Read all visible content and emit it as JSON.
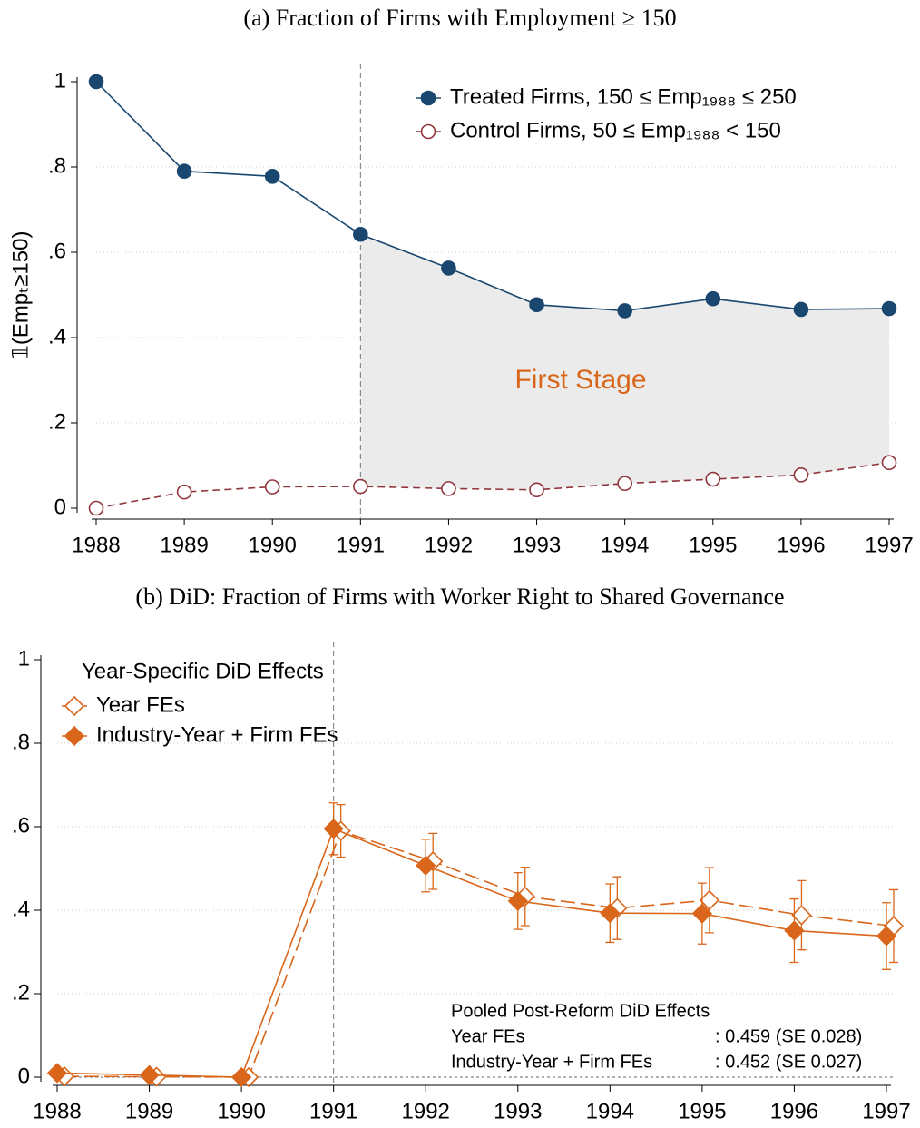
{
  "chart_data": [
    {
      "type": "line",
      "title": "(a) Fraction of Firms with Employment ≥ 150",
      "y_label": "𝟙(Empₜ≥150)",
      "x": [
        1988,
        1989,
        1990,
        1991,
        1992,
        1993,
        1994,
        1995,
        1996,
        1997
      ],
      "series": [
        {
          "name": "Treated Firms, 150 ≤ Emp₁₉₈₈ ≤ 250",
          "color": "#1a476f",
          "marker": "circle",
          "dash": false,
          "values": [
            1,
            0.79,
            0.778,
            0.642,
            0.563,
            0.477,
            0.463,
            0.491,
            0.466,
            0.468
          ]
        },
        {
          "name": "Control Firms,  50 ≤ Emp₁₉₈₈ < 150",
          "color": "#90353b",
          "marker": "circle-hollow",
          "dash": true,
          "values": [
            0,
            0.038,
            0.05,
            0.051,
            0.046,
            0.043,
            0.058,
            0.068,
            0.078,
            0.107
          ]
        }
      ],
      "xlim": [
        1988,
        1997
      ],
      "xticks": [
        1988,
        1989,
        1990,
        1991,
        1992,
        1993,
        1994,
        1995,
        1996,
        1997
      ],
      "ylim": [
        0,
        1
      ],
      "yticks": [
        0,
        {
          "value": 0.2,
          "label": ".2"
        },
        {
          "value": 0.4,
          "label": ".4"
        },
        {
          "value": 0.6,
          "label": ".6"
        },
        {
          "value": 0.8,
          "label": ".8"
        },
        1
      ],
      "grid": true,
      "vline": 1991,
      "shade_after_vline": true,
      "annotation": "First Stage",
      "legend": "top-right"
    },
    {
      "type": "line",
      "title": "(b) DiD: Fraction of Firms with Worker Right to Shared Governance",
      "x": [
        1988,
        1989,
        1990,
        1991,
        1992,
        1993,
        1994,
        1995,
        1996,
        1997
      ],
      "legend_title": "Year-Specific DiD Effects",
      "series": [
        {
          "name": "Year FEs",
          "color": "#d9661a",
          "marker": "diamond-hollow",
          "dash": true,
          "values": [
            0.002,
            0.001,
            0,
            0.59,
            0.517,
            0.433,
            0.405,
            0.424,
            0.388,
            0.362
          ],
          "errors": [
            0,
            0,
            0,
            0.063,
            0.067,
            0.07,
            0.075,
            0.078,
            0.083,
            0.087
          ]
        },
        {
          "name": "Industry-Year + Firm FEs",
          "color": "#d9661a",
          "marker": "diamond",
          "dash": false,
          "values": [
            0.01,
            0.005,
            0,
            0.595,
            0.507,
            0.422,
            0.393,
            0.392,
            0.351,
            0.338
          ],
          "errors": [
            0,
            0,
            0,
            0.062,
            0.063,
            0.068,
            0.07,
            0.073,
            0.076,
            0.08
          ]
        }
      ],
      "xlim": [
        1988,
        1997
      ],
      "xticks": [
        1988,
        1989,
        1990,
        1991,
        1992,
        1993,
        1994,
        1995,
        1996,
        1997
      ],
      "ylim": [
        0,
        1
      ],
      "yticks": [
        0,
        {
          "value": 0.2,
          "label": ".2"
        },
        {
          "value": 0.4,
          "label": ".4"
        },
        {
          "value": 0.6,
          "label": ".6"
        },
        {
          "value": 0.8,
          "label": ".8"
        },
        1
      ],
      "grid": true,
      "vline": 1991,
      "hline": 0,
      "legend": "top-left",
      "note": {
        "title": "Pooled Post-Reform DiD Effects",
        "rows": [
          [
            "Year FEs",
            ": 0.459 (SE 0.028)"
          ],
          [
            "Industry-Year + Firm FEs",
            ": 0.452 (SE 0.027)"
          ]
        ]
      }
    }
  ]
}
